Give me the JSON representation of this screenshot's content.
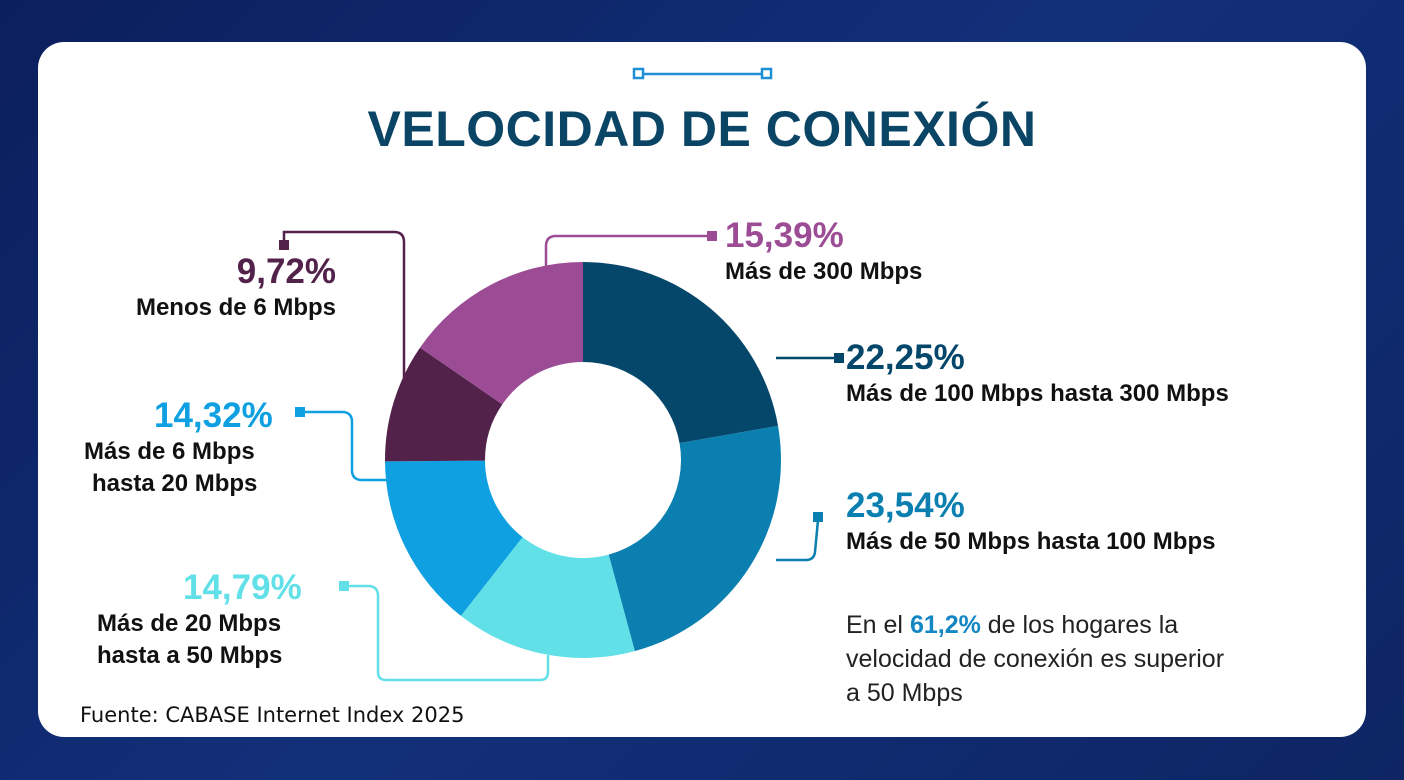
{
  "title": "VELOCIDAD DE CONEXIÓN",
  "source": "Fuente: CABASE Internet Index 2025",
  "note": {
    "pre": "En el ",
    "highlight": "61,2%",
    "post_line1": " de los hogares la",
    "line2": "velocidad de conexión es superior",
    "line3": "a 50 Mbps"
  },
  "chart_data": {
    "type": "pie",
    "subtype": "donut",
    "title": "VELOCIDAD DE CONEXIÓN",
    "slices": [
      {
        "label": "Más de 100 Mbps hasta 300 Mbps",
        "value": 22.25,
        "display": "22,25%",
        "color": "#04476a"
      },
      {
        "label": "Más de 50 Mbps hasta 100 Mbps",
        "value": 23.54,
        "display": "23,54%",
        "color": "#0a7fb0"
      },
      {
        "label": "Más de 20 Mbps hasta a 50 Mbps",
        "line1": "Más de 20 Mbps",
        "line2": "hasta a 50 Mbps",
        "value": 14.79,
        "display": "14,79%",
        "color": "#62e0e8"
      },
      {
        "label": "Más de 6 Mbps hasta 20 Mbps",
        "line1": "Más de 6 Mbps",
        "line2": "hasta 20 Mbps",
        "value": 14.32,
        "display": "14,32%",
        "color": "#0ea0e0"
      },
      {
        "label": "Menos de 6 Mbps",
        "value": 9.72,
        "display": "9,72%",
        "color": "#52224a"
      },
      {
        "label": "Más de 300 Mbps",
        "value": 15.39,
        "display": "15,39%",
        "color": "#9b4c94"
      }
    ]
  }
}
